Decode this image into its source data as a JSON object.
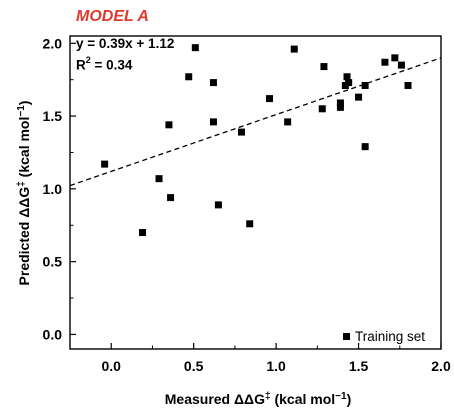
{
  "chart_data": {
    "type": "scatter",
    "title": "MODEL A",
    "title_color": "#e03a2f",
    "equation": "y =  0.39x + 1.12",
    "r2_prefix": "R",
    "r2_sup": "2",
    "r2_value": " = 0.34",
    "xlabel": {
      "main": "Measured ΔΔG",
      "sup1": "‡",
      "mid": " (kcal mol",
      "sup2": "−1",
      "end": ")"
    },
    "ylabel": {
      "main": "Predicted ΔΔG",
      "sup1": "‡",
      "mid": " (kcal mol",
      "sup2": "−1",
      "end": ")"
    },
    "xlim": [
      -0.25,
      2.0
    ],
    "ylim": [
      -0.1,
      2.05
    ],
    "x_ticks": [
      {
        "value": 0.0,
        "label": "0.0"
      },
      {
        "value": 0.5,
        "label": "0.5"
      },
      {
        "value": 1.0,
        "label": "1.0"
      },
      {
        "value": 1.5,
        "label": "1.5"
      },
      {
        "value": 2.0,
        "label": "2.0"
      }
    ],
    "x_minor_ticks": [
      -0.25,
      0.25,
      0.75,
      1.25,
      1.75
    ],
    "y_ticks": [
      {
        "value": 0.0,
        "label": "0.0"
      },
      {
        "value": 0.5,
        "label": "0.5"
      },
      {
        "value": 1.0,
        "label": "1.0"
      },
      {
        "value": 1.5,
        "label": "1.5"
      },
      {
        "value": 2.0,
        "label": "2.0"
      }
    ],
    "y_minor_ticks": [
      0.25,
      0.75,
      1.25,
      1.75
    ],
    "fit": {
      "slope": 0.39,
      "intercept": 1.12,
      "style": "dashed"
    },
    "grid": false,
    "legend_position": "bottom-right",
    "series": [
      {
        "name": "Training set",
        "marker": "square",
        "color": "#000000",
        "points": [
          {
            "x": -0.04,
            "y": 1.17
          },
          {
            "x": 0.19,
            "y": 0.7
          },
          {
            "x": 0.29,
            "y": 1.07
          },
          {
            "x": 0.35,
            "y": 1.44
          },
          {
            "x": 0.36,
            "y": 0.94
          },
          {
            "x": 0.47,
            "y": 1.77
          },
          {
            "x": 0.51,
            "y": 1.97
          },
          {
            "x": 0.62,
            "y": 1.73
          },
          {
            "x": 0.62,
            "y": 1.46
          },
          {
            "x": 0.65,
            "y": 0.89
          },
          {
            "x": 0.79,
            "y": 1.39
          },
          {
            "x": 0.84,
            "y": 0.76
          },
          {
            "x": 0.96,
            "y": 1.62
          },
          {
            "x": 1.07,
            "y": 1.46
          },
          {
            "x": 1.11,
            "y": 1.96
          },
          {
            "x": 1.28,
            "y": 1.55
          },
          {
            "x": 1.29,
            "y": 1.84
          },
          {
            "x": 1.39,
            "y": 1.59
          },
          {
            "x": 1.39,
            "y": 1.56
          },
          {
            "x": 1.42,
            "y": 1.71
          },
          {
            "x": 1.43,
            "y": 1.77
          },
          {
            "x": 1.44,
            "y": 1.73
          },
          {
            "x": 1.5,
            "y": 1.63
          },
          {
            "x": 1.54,
            "y": 1.71
          },
          {
            "x": 1.54,
            "y": 1.29
          },
          {
            "x": 1.66,
            "y": 1.87
          },
          {
            "x": 1.72,
            "y": 1.9
          },
          {
            "x": 1.76,
            "y": 1.85
          },
          {
            "x": 1.8,
            "y": 1.71
          }
        ]
      }
    ]
  }
}
